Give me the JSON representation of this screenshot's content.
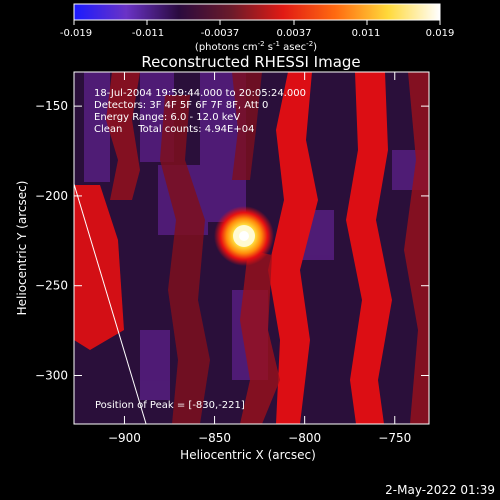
{
  "colorbar": {
    "colors": [
      "#1a1aff",
      "#6a33c6",
      "#2a0a3f",
      "#6a1a2a",
      "#e11a14",
      "#ff6a10",
      "#ffd93a",
      "#ffffff"
    ],
    "tick_labels": [
      "-0.019",
      "-0.011",
      "-0.0037",
      "0.0037",
      "0.011",
      "0.019"
    ],
    "units_prefix": "(photons cm",
    "units_exp1": "-2",
    "units_mid1": " s",
    "units_exp2": "-1",
    "units_mid2": " asec",
    "units_exp3": "-2",
    "units_suffix": ")"
  },
  "image": {
    "title": "Reconstructed RHESSI Image",
    "info": {
      "time_range": "18-Jul-2004 19:59:44.000 to 20:05:24.000",
      "detectors": "Detectors: 3F 4F 5F 6F 7F 8F, Att 0",
      "energy_range": "Energy Range: 6.0 - 12.0 keV",
      "method": "Clean     Total counts: 4.94E+04"
    },
    "peak_label": "Position of Peak = [-830,-221]",
    "peak": {
      "x": -830,
      "y": -221
    },
    "limb_line": [
      [
        -929,
        -190
      ],
      [
        -888,
        -327
      ]
    ],
    "x_range": [
      -928,
      -731
    ],
    "y_range": [
      -327,
      -131
    ],
    "x_label": "Heliocentric X (arcsec)",
    "y_label": "Heliocentric Y (arcsec)",
    "x_ticks": [
      -900,
      -850,
      -800,
      -750
    ],
    "y_ticks": [
      -150,
      -200,
      -250,
      -300
    ],
    "x_tick_labels": [
      "−900",
      "−850",
      "−800",
      "−750"
    ],
    "y_tick_labels": [
      "−150",
      "−200",
      "−250",
      "−300"
    ],
    "bright_colors": {
      "red": "#e60f12",
      "dark_red": "#7d0f1e",
      "purple": "#561e80",
      "dark": "#1e0a2d",
      "yellow": "#fffad2",
      "orange": "#ff8c0a"
    }
  },
  "footer": {
    "timestamp": "2-May-2022 01:39"
  }
}
